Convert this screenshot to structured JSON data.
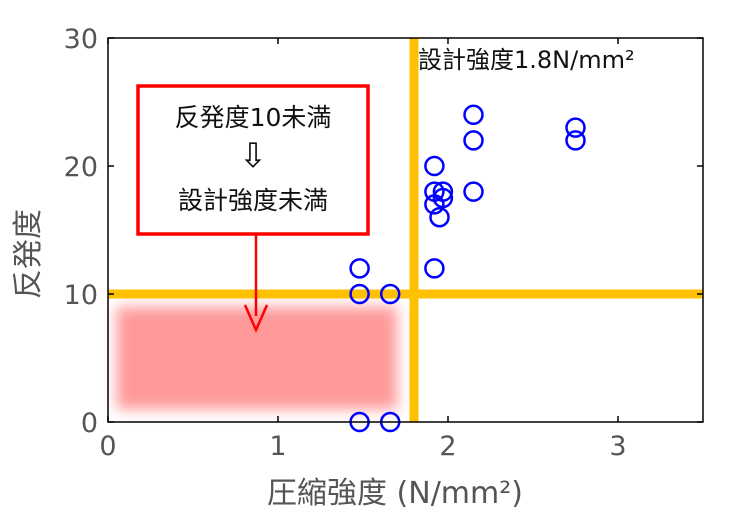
{
  "chart_data": {
    "type": "scatter",
    "title": "",
    "xlabel": "圧縮強度 (N/mm²)",
    "ylabel": "反発度",
    "xlim": [
      0,
      3.5
    ],
    "ylim": [
      0,
      30
    ],
    "xticks": [
      "0",
      "1",
      "2",
      "3"
    ],
    "yticks": [
      "0",
      "10",
      "20",
      "30"
    ],
    "xtick_values": [
      0,
      1,
      2,
      3
    ],
    "ytick_values": [
      0,
      10,
      20,
      30
    ],
    "grid": false,
    "marker": "open-circle",
    "series": [
      {
        "color": "#0000ff",
        "points": [
          {
            "x": 1.48,
            "y": 12
          },
          {
            "x": 1.48,
            "y": 10
          },
          {
            "x": 1.48,
            "y": 0
          },
          {
            "x": 1.66,
            "y": 10
          },
          {
            "x": 1.66,
            "y": 0
          },
          {
            "x": 1.92,
            "y": 20
          },
          {
            "x": 1.92,
            "y": 18
          },
          {
            "x": 1.92,
            "y": 17
          },
          {
            "x": 1.92,
            "y": 12
          },
          {
            "x": 1.95,
            "y": 16
          },
          {
            "x": 1.97,
            "y": 17.5
          },
          {
            "x": 1.97,
            "y": 18
          },
          {
            "x": 2.15,
            "y": 24
          },
          {
            "x": 2.15,
            "y": 22
          },
          {
            "x": 2.15,
            "y": 18
          },
          {
            "x": 2.75,
            "y": 23
          },
          {
            "x": 2.75,
            "y": 22
          }
        ]
      }
    ],
    "reference_lines": [
      {
        "axis": "x",
        "value": 1.8,
        "color": "#ffc000",
        "label": "設計強度1.8N/mm²"
      },
      {
        "axis": "y",
        "value": 10,
        "color": "#ffc000"
      }
    ],
    "highlight_region": {
      "x": [
        0.05,
        1.7
      ],
      "y": [
        1,
        9
      ],
      "color": "#ff9999"
    },
    "annotation_box": {
      "line1": "反発度10未満",
      "arrow": "⇩",
      "line2": "設計強度未満",
      "border_color": "#ff0000"
    },
    "arrow_color": "#ff0000"
  }
}
